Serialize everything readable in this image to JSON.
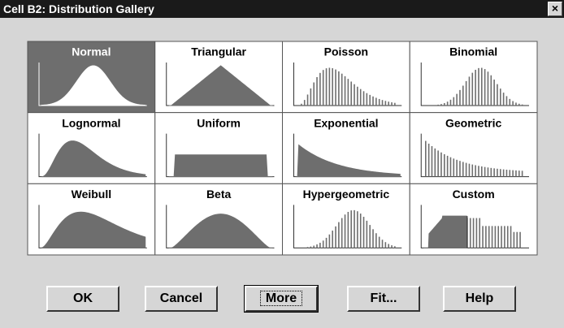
{
  "window": {
    "title": "Cell B2: Distribution Gallery",
    "close": "×"
  },
  "gallery": {
    "tiles": [
      {
        "label": "Normal"
      },
      {
        "label": "Triangular"
      },
      {
        "label": "Poisson"
      },
      {
        "label": "Binomial"
      },
      {
        "label": "Lognormal"
      },
      {
        "label": "Uniform"
      },
      {
        "label": "Exponential"
      },
      {
        "label": "Geometric"
      },
      {
        "label": "Weibull"
      },
      {
        "label": "Beta"
      },
      {
        "label": "Hypergeometric"
      },
      {
        "label": "Custom"
      }
    ]
  },
  "buttons": [
    {
      "label": "OK"
    },
    {
      "label": "Cancel"
    },
    {
      "label": "More"
    },
    {
      "label": "Fit..."
    },
    {
      "label": "Help"
    }
  ]
}
